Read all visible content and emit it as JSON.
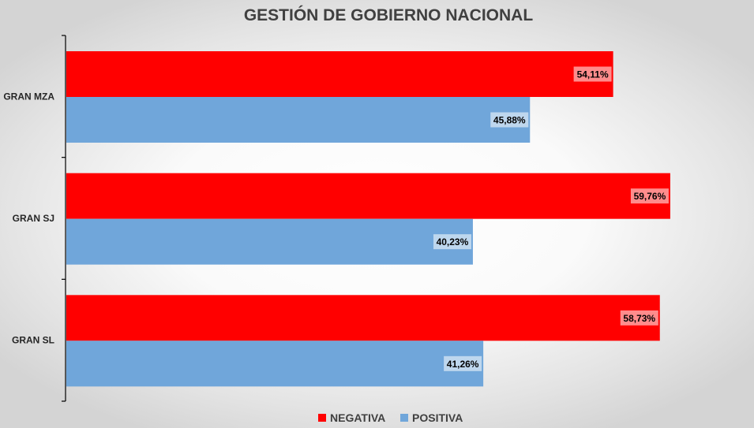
{
  "chart_data": {
    "type": "bar",
    "orientation": "horizontal",
    "title": "GESTIÓN DE GOBIERNO NACIONAL",
    "categories": [
      "GRAN MZA",
      "GRAN SJ",
      "GRAN SL"
    ],
    "series": [
      {
        "name": "NEGATIVA",
        "color": "#ff0000",
        "values": [
          54.11,
          59.76,
          58.73
        ],
        "labels": [
          "54,11%",
          "59,76%",
          "58,73%"
        ]
      },
      {
        "name": "POSITIVA",
        "color": "#70a6da",
        "values": [
          45.88,
          40.23,
          41.26
        ],
        "labels": [
          "45,88%",
          "40,23%",
          "41,26%"
        ]
      }
    ],
    "xlim": [
      0,
      70
    ],
    "grid": false,
    "legend_position": "bottom"
  }
}
